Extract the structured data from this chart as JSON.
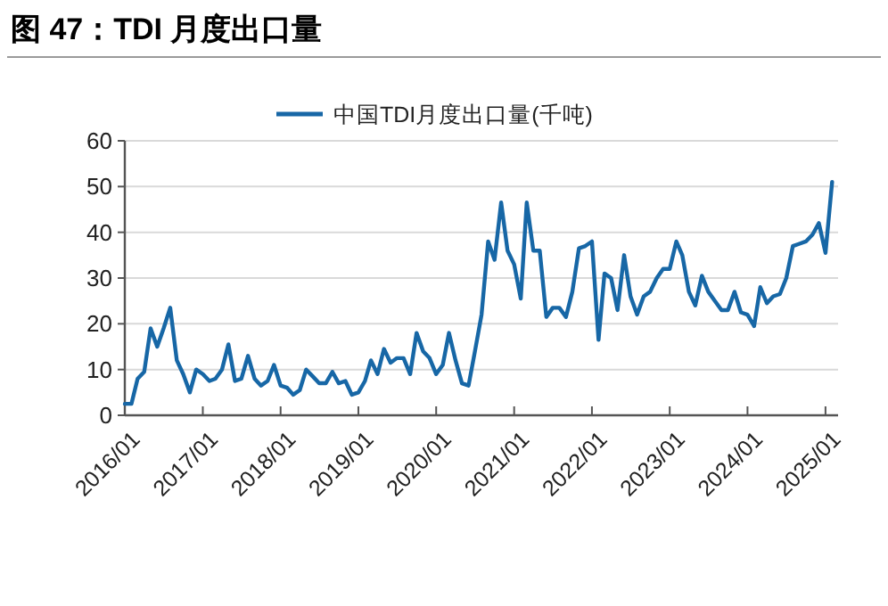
{
  "chart_data": {
    "type": "line",
    "title": "图 47：TDI 月度出口量",
    "x": [
      "2016-01",
      "2016-02",
      "2016-03",
      "2016-04",
      "2016-05",
      "2016-06",
      "2016-07",
      "2016-08",
      "2016-09",
      "2016-10",
      "2016-11",
      "2016-12",
      "2017-01",
      "2017-02",
      "2017-03",
      "2017-04",
      "2017-05",
      "2017-06",
      "2017-07",
      "2017-08",
      "2017-09",
      "2017-10",
      "2017-11",
      "2017-12",
      "2018-01",
      "2018-02",
      "2018-03",
      "2018-04",
      "2018-05",
      "2018-06",
      "2018-07",
      "2018-08",
      "2018-09",
      "2018-10",
      "2018-11",
      "2018-12",
      "2019-01",
      "2019-02",
      "2019-03",
      "2019-04",
      "2019-05",
      "2019-06",
      "2019-07",
      "2019-08",
      "2019-09",
      "2019-10",
      "2019-11",
      "2019-12",
      "2020-01",
      "2020-02",
      "2020-03",
      "2020-04",
      "2020-05",
      "2020-06",
      "2020-07",
      "2020-08",
      "2020-09",
      "2020-10",
      "2020-11",
      "2020-12",
      "2021-01",
      "2021-02",
      "2021-03",
      "2021-04",
      "2021-05",
      "2021-06",
      "2021-07",
      "2021-08",
      "2021-09",
      "2021-10",
      "2021-11",
      "2021-12",
      "2022-01",
      "2022-02",
      "2022-03",
      "2022-04",
      "2022-05",
      "2022-06",
      "2022-07",
      "2022-08",
      "2022-09",
      "2022-10",
      "2022-11",
      "2022-12",
      "2023-01",
      "2023-02",
      "2023-03",
      "2023-04",
      "2023-05",
      "2023-06",
      "2023-07",
      "2023-08",
      "2023-09",
      "2023-10",
      "2023-11",
      "2023-12",
      "2024-01",
      "2024-02",
      "2024-03",
      "2024-04",
      "2024-05",
      "2024-06",
      "2024-07",
      "2024-08",
      "2024-09",
      "2024-10",
      "2024-11",
      "2024-12",
      "2025-01",
      "2025-02"
    ],
    "series": [
      {
        "name": "中国TDI月度出口量(千吨)",
        "color": "#1767a6",
        "values": [
          2.5,
          2.5,
          8,
          9.5,
          19,
          15,
          19,
          23.5,
          12,
          9,
          5,
          10,
          9,
          7.5,
          8,
          10,
          15.5,
          7.5,
          8,
          13,
          8,
          6.5,
          7.5,
          11,
          6.5,
          6,
          4.5,
          5.5,
          10,
          8.5,
          7,
          7,
          9.5,
          7,
          7.5,
          4.5,
          5,
          7.5,
          12,
          9,
          14.5,
          11.5,
          12.5,
          12.5,
          9,
          18,
          14,
          12.5,
          9,
          11,
          18,
          12,
          7,
          6.5,
          14,
          22,
          38,
          34,
          46.5,
          36,
          33,
          25.5,
          46.5,
          36,
          36,
          21.5,
          23.5,
          23.5,
          21.5,
          27,
          36.5,
          37,
          38,
          16.5,
          31,
          30,
          23,
          35,
          26,
          22,
          26,
          27,
          30,
          32,
          32,
          38,
          35,
          27,
          24,
          30.5,
          27,
          25,
          23,
          23,
          27,
          22.5,
          22,
          19.5,
          28,
          24.5,
          26,
          26.5,
          30,
          37,
          37.5,
          38,
          39.5,
          42,
          35.5,
          51
        ]
      }
    ],
    "xlim": [
      "2016-01",
      "2025-03"
    ],
    "xticks": [
      {
        "value": "2016-01",
        "label": "2016/01"
      },
      {
        "value": "2017-01",
        "label": "2017/01"
      },
      {
        "value": "2018-01",
        "label": "2018/01"
      },
      {
        "value": "2019-01",
        "label": "2019/01"
      },
      {
        "value": "2020-01",
        "label": "2020/01"
      },
      {
        "value": "2021-01",
        "label": "2021/01"
      },
      {
        "value": "2022-01",
        "label": "2022/01"
      },
      {
        "value": "2023-01",
        "label": "2023/01"
      },
      {
        "value": "2024-01",
        "label": "2024/01"
      },
      {
        "value": "2025-01",
        "label": "2025/01"
      }
    ],
    "ylim": [
      0,
      60
    ],
    "yticks": [
      0,
      10,
      20,
      30,
      40,
      50,
      60
    ],
    "grid": "y",
    "legend": "top",
    "marker": "none",
    "line_style": "solid"
  }
}
